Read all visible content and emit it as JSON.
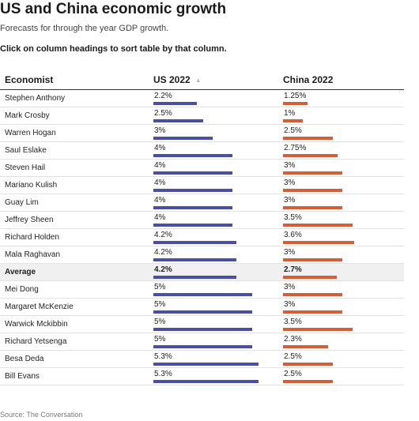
{
  "title": "US and China economic growth",
  "subtitle": "Forecasts for through the year GDP growth.",
  "instruction": "Click on column headings to sort table by that column.",
  "source": "Source: The Conversation",
  "colors": {
    "us": "#4a4fa2",
    "china": "#d0603a",
    "average_row": "#f0f0f0"
  },
  "icons": {
    "sort": "sort-ascending-triangle-icon"
  },
  "chart_data": {
    "type": "table",
    "columns": [
      "Economist",
      "US 2022",
      "China 2022"
    ],
    "sorted_by": "US 2022",
    "sort_direction": "ascending",
    "bar_scale_max": 6,
    "rows": [
      {
        "economist": "Stephen Anthony",
        "us": 2.2,
        "us_label": "2.2%",
        "china": 1.25,
        "china_label": "1.25%"
      },
      {
        "economist": "Mark Crosby",
        "us": 2.5,
        "us_label": "2.5%",
        "china": 1,
        "china_label": "1%"
      },
      {
        "economist": "Warren Hogan",
        "us": 3,
        "us_label": "3%",
        "china": 2.5,
        "china_label": "2.5%"
      },
      {
        "economist": "Saul Eslake",
        "us": 4,
        "us_label": "4%",
        "china": 2.75,
        "china_label": "2.75%"
      },
      {
        "economist": "Steven Hail",
        "us": 4,
        "us_label": "4%",
        "china": 3,
        "china_label": "3%"
      },
      {
        "economist": "Mariano Kulish",
        "us": 4,
        "us_label": "4%",
        "china": 3,
        "china_label": "3%"
      },
      {
        "economist": "Guay Lim",
        "us": 4,
        "us_label": "4%",
        "china": 3,
        "china_label": "3%"
      },
      {
        "economist": "Jeffrey Sheen",
        "us": 4,
        "us_label": "4%",
        "china": 3.5,
        "china_label": "3.5%"
      },
      {
        "economist": "Richard Holden",
        "us": 4.2,
        "us_label": "4.2%",
        "china": 3.6,
        "china_label": "3.6%"
      },
      {
        "economist": "Mala Raghavan",
        "us": 4.2,
        "us_label": "4.2%",
        "china": 3,
        "china_label": "3%"
      },
      {
        "economist": "Average",
        "us": 4.2,
        "us_label": "4.2%",
        "china": 2.7,
        "china_label": "2.7%",
        "average": true
      },
      {
        "economist": "Mei Dong",
        "us": 5,
        "us_label": "5%",
        "china": 3,
        "china_label": "3%"
      },
      {
        "economist": "Margaret McKenzie",
        "us": 5,
        "us_label": "5%",
        "china": 3,
        "china_label": "3%"
      },
      {
        "economist": "Warwick Mckibbin",
        "us": 5,
        "us_label": "5%",
        "china": 3.5,
        "china_label": "3.5%"
      },
      {
        "economist": "Richard Yetsenga",
        "us": 5,
        "us_label": "5%",
        "china": 2.3,
        "china_label": "2.3%"
      },
      {
        "economist": "Besa Deda",
        "us": 5.3,
        "us_label": "5.3%",
        "china": 2.5,
        "china_label": "2.5%"
      },
      {
        "economist": "Bill Evans",
        "us": 5.3,
        "us_label": "5.3%",
        "china": 2.5,
        "china_label": "2.5%"
      }
    ]
  }
}
